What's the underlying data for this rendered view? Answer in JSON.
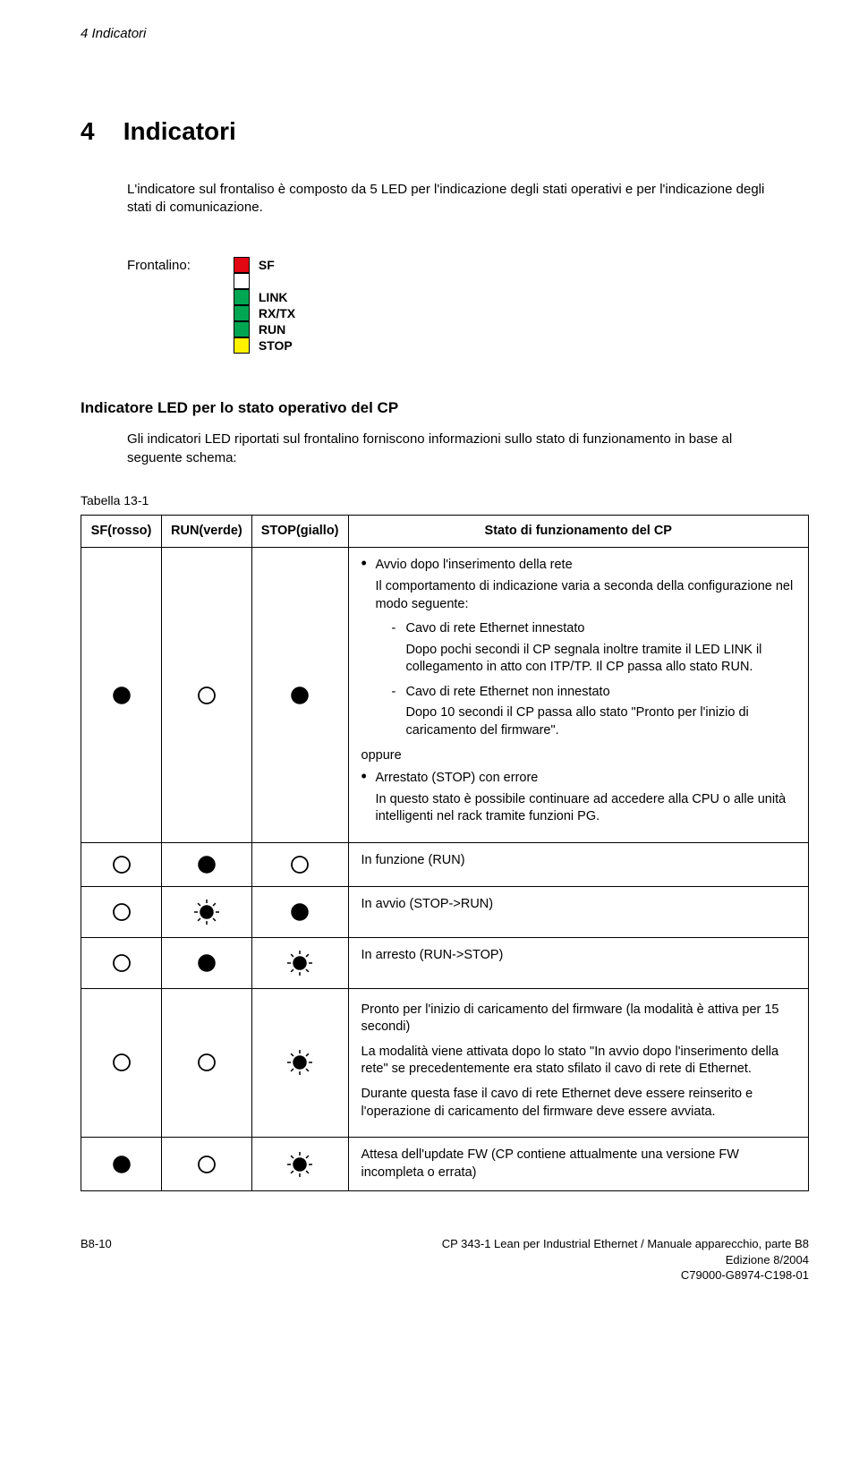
{
  "running_header": "4   Indicatori",
  "chapter": {
    "number": "4",
    "title": "Indicatori"
  },
  "intro": "L'indicatore sul frontaliso è composto da 5 LED per l'indicazione degli stati operativi e per l'indicazione degli stati di comunicazione.",
  "frontalino_label": "Frontalino:",
  "led_diagram": {
    "boxes": [
      {
        "color": "#e30613"
      },
      {
        "color": "#ffffff"
      },
      {
        "color": "#00a651"
      },
      {
        "color": "#00a651"
      },
      {
        "color": "#00a651"
      },
      {
        "color": "#fff200"
      }
    ],
    "labels": [
      "SF",
      "",
      "LINK",
      "RX/TX",
      "RUN",
      "STOP"
    ]
  },
  "section_heading": "Indicatore LED per lo stato operativo del CP",
  "section_intro": "Gli indicatori LED riportati sul frontalino forniscono informazioni sullo stato di funzionamento in base al seguente schema:",
  "table_caption": "Tabella 13-1",
  "table": {
    "headers": [
      "SF(rosso)",
      "RUN(verde)",
      "STOP(giallo)",
      "Stato di funzionamento del CP"
    ],
    "rows": [
      {
        "sf": "filled",
        "run": "open",
        "stop": "filled",
        "bullets": [
          {
            "text": "Avvio dopo l'inserimento della rete",
            "para": "Il comportamento di indicazione varia a seconda della configurazione nel modo seguente:",
            "dashes": [
              {
                "title": "Cavo di rete Ethernet innestato",
                "body": "Dopo pochi secondi il CP segnala inoltre tramite il LED LINK il collegamento in atto con ITP/TP. Il CP passa allo stato RUN."
              },
              {
                "title": "Cavo di rete Ethernet non innestato",
                "body": "Dopo 10 secondi il CP passa allo stato \"Pronto per l'inizio di caricamento del firmware\"."
              }
            ]
          }
        ],
        "oppure": "oppure",
        "bullets2": [
          {
            "text": "Arrestato (STOP) con errore",
            "para": "In questo stato è possibile continuare ad accedere alla CPU o alle unità intelligenti nel rack tramite funzioni PG."
          }
        ]
      },
      {
        "sf": "open",
        "run": "filled",
        "stop": "open",
        "plain": "In funzione (RUN)"
      },
      {
        "sf": "open",
        "run": "blink",
        "stop": "filled",
        "plain": "In avvio (STOP->RUN)"
      },
      {
        "sf": "open",
        "run": "filled",
        "stop": "blink",
        "plain": "In arresto (RUN->STOP)"
      },
      {
        "sf": "open",
        "run": "open",
        "stop": "blink",
        "paras": [
          "Pronto per l'inizio di caricamento del firmware (la modalità è attiva per 15 secondi)",
          "La modalità viene attivata dopo lo stato \"In avvio dopo l'inserimento della rete\" se precedentemente era stato sfilato il cavo di rete di Ethernet.",
          "Durante questa fase il cavo di rete Ethernet deve essere reinserito e l'operazione di caricamento del firmware deve essere avviata."
        ]
      },
      {
        "sf": "filled",
        "run": "open",
        "stop": "blink",
        "plain": "Attesa dell'update FW (CP contiene attualmente una versione FW incompleta o errata)"
      }
    ]
  },
  "footer": {
    "left": "B8-10",
    "right": [
      "CP 343-1 Lean per Industrial Ethernet / Manuale apparecchio, parte B8",
      "Edizione 8/2004",
      "C79000-G8974-C198-01"
    ]
  },
  "symbols": {
    "stroke": "#000000",
    "fill_on": "#000000",
    "fill_off": "#ffffff"
  }
}
